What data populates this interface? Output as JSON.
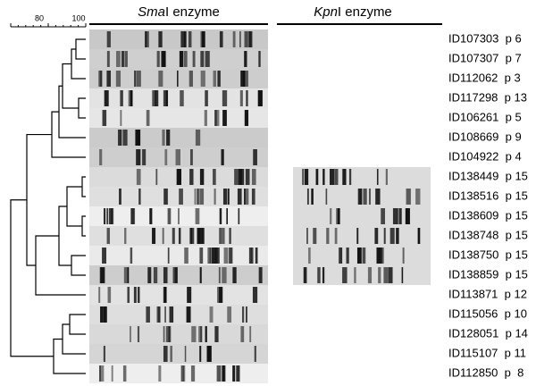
{
  "scale": {
    "labels": [
      "80",
      "100"
    ]
  },
  "headers": [
    {
      "italic": "Sma",
      "rest": "I enzyme"
    },
    {
      "italic": "Kpn",
      "rest": "I enzyme"
    }
  ],
  "rows": [
    "ID107303  p 6",
    "ID107307  p 7",
    "ID112062  p 3",
    "ID117298  p 13",
    "ID106261  p 5",
    "ID108669  p 9",
    "ID104922  p 4",
    "ID138449  p 15",
    "ID138516  p 15",
    "ID138609  p 15",
    "ID138748  p 15",
    "ID138750  p 15",
    "ID138859  p 15",
    "ID113871  p 12",
    "ID115056  p 10",
    "ID128051  p 14",
    "ID115107  p 11",
    "ID112850  p  8"
  ]
}
